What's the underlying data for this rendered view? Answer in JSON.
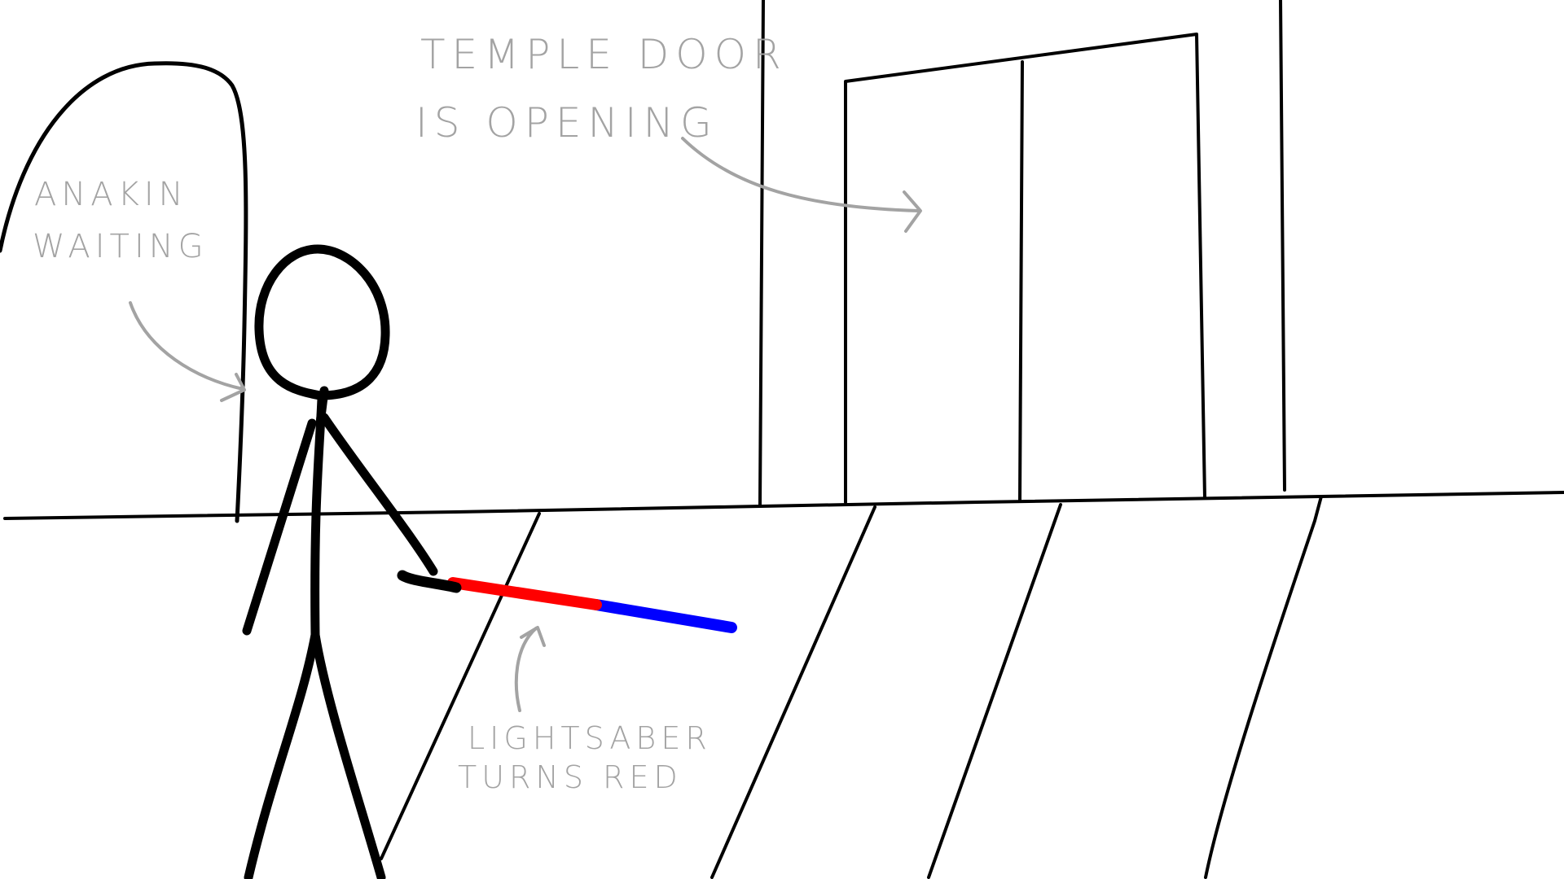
{
  "annotations": {
    "door": {
      "line1": "TEMPLE DOOR",
      "line2": "IS OPENING"
    },
    "anakin": {
      "line1": "ANAKIN",
      "line2": "WAITING"
    },
    "saber": {
      "line1": "LIGHTSABER",
      "line2": "TURNS RED"
    }
  },
  "colors": {
    "ink": "#000000",
    "annotation": "#a3a3a3",
    "saber_red": "#ff0000",
    "saber_blue": "#0000ff",
    "background": "#ffffff"
  }
}
